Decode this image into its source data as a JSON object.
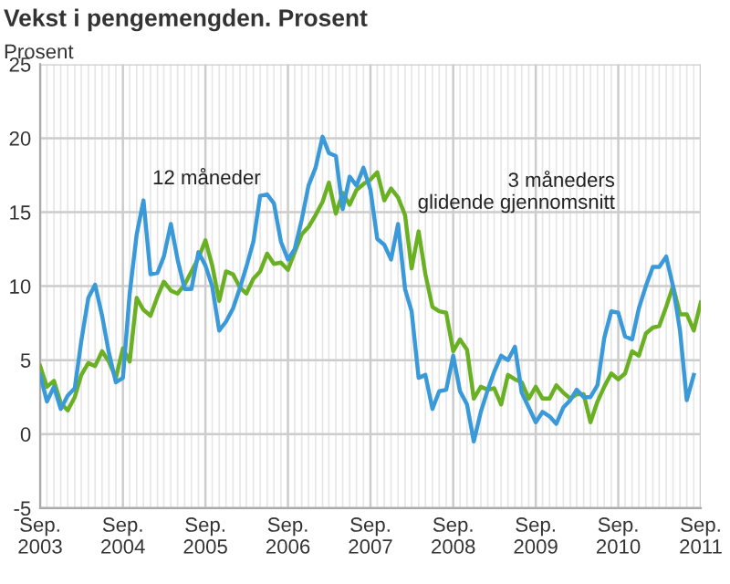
{
  "chart_data": {
    "type": "line",
    "title": "Vekst i pengemengden. Prosent",
    "ylabel": "Prosent",
    "x": [
      "2003-09",
      "2003-10",
      "2003-11",
      "2003-12",
      "2004-01",
      "2004-02",
      "2004-03",
      "2004-04",
      "2004-05",
      "2004-06",
      "2004-07",
      "2004-08",
      "2004-09",
      "2004-10",
      "2004-11",
      "2004-12",
      "2005-01",
      "2005-02",
      "2005-03",
      "2005-04",
      "2005-05",
      "2005-06",
      "2005-07",
      "2005-08",
      "2005-09",
      "2005-10",
      "2005-11",
      "2005-12",
      "2006-01",
      "2006-02",
      "2006-03",
      "2006-04",
      "2006-05",
      "2006-06",
      "2006-07",
      "2006-08",
      "2006-09",
      "2006-10",
      "2006-11",
      "2006-12",
      "2007-01",
      "2007-02",
      "2007-03",
      "2007-04",
      "2007-05",
      "2007-06",
      "2007-07",
      "2007-08",
      "2007-09",
      "2007-10",
      "2007-11",
      "2007-12",
      "2008-01",
      "2008-02",
      "2008-03",
      "2008-04",
      "2008-05",
      "2008-06",
      "2008-07",
      "2008-08",
      "2008-09",
      "2008-10",
      "2008-11",
      "2008-12",
      "2009-01",
      "2009-02",
      "2009-03",
      "2009-04",
      "2009-05",
      "2009-06",
      "2009-07",
      "2009-08",
      "2009-09",
      "2009-10",
      "2009-11",
      "2009-12",
      "2010-01",
      "2010-02",
      "2010-03",
      "2010-04",
      "2010-05",
      "2010-06",
      "2010-07",
      "2010-08",
      "2010-09",
      "2010-10",
      "2010-11",
      "2010-12",
      "2011-01",
      "2011-02",
      "2011-03",
      "2011-04",
      "2011-05",
      "2011-06",
      "2011-07",
      "2011-08",
      "2011-09"
    ],
    "series": [
      {
        "name": "12 måneder",
        "color": "#3a9ad9",
        "values": [
          4.0,
          2.2,
          3.2,
          1.7,
          2.6,
          3.1,
          6.3,
          9.2,
          10.1,
          8.0,
          5.5,
          3.5,
          3.8,
          9.5,
          13.5,
          15.8,
          10.8,
          10.9,
          12.0,
          14.2,
          11.8,
          9.8,
          9.8,
          12.3,
          11.4,
          10.0,
          7.0,
          7.6,
          8.5,
          9.9,
          11.3,
          13.0,
          16.1,
          16.2,
          15.6,
          13.0,
          11.8,
          12.5,
          14.5,
          16.8,
          18.0,
          20.1,
          19.0,
          18.8,
          15.2,
          17.4,
          16.8,
          18.0,
          16.5,
          13.2,
          12.8,
          11.8,
          14.2,
          9.8,
          8.3,
          3.8,
          4.0,
          1.7,
          2.9,
          3.0,
          5.3,
          2.9,
          2.0,
          -0.5,
          1.5,
          3.0,
          4.2,
          5.3,
          5.0,
          5.9,
          2.8,
          1.8,
          0.8,
          1.5,
          1.2,
          0.7,
          1.8,
          2.3,
          3.0,
          2.5,
          2.5,
          3.3,
          6.5,
          8.3,
          8.2,
          6.6,
          6.4,
          8.5,
          10.0,
          11.3,
          11.3,
          12.0,
          10.0,
          7.0,
          2.3,
          4.0,
          null
        ]
      },
      {
        "name": "3 måneders\nglidende gjennomsnitt",
        "color": "#6ab023",
        "values": [
          4.6,
          3.2,
          3.6,
          2.1,
          1.6,
          2.5,
          4.0,
          4.8,
          4.6,
          5.6,
          4.9,
          3.8,
          5.8,
          4.9,
          9.2,
          8.4,
          8.0,
          9.3,
          10.3,
          9.7,
          9.5,
          10.1,
          11.0,
          11.9,
          13.1,
          11.4,
          9.0,
          11.0,
          10.8,
          9.9,
          9.5,
          10.5,
          11.0,
          12.2,
          11.5,
          11.6,
          11.1,
          12.3,
          13.5,
          14.0,
          14.8,
          15.7,
          17.0,
          14.9,
          16.3,
          15.5,
          16.5,
          16.9,
          17.2,
          17.7,
          15.8,
          16.6,
          16.0,
          14.8,
          11.2,
          13.7,
          10.8,
          8.6,
          8.3,
          8.2,
          5.6,
          6.4,
          5.7,
          2.4,
          3.2,
          3.0,
          3.1,
          2.0,
          4.0,
          3.7,
          3.5,
          2.4,
          3.2,
          2.4,
          2.4,
          3.3,
          2.8,
          2.4,
          2.7,
          2.7,
          0.8,
          2.2,
          3.2,
          4.1,
          3.7,
          4.1,
          5.6,
          5.3,
          6.8,
          7.2,
          7.3,
          8.6,
          10.0,
          8.1,
          8.1,
          7.0,
          8.9
        ]
      }
    ],
    "xlim": [
      "2003-09",
      "2011-09"
    ],
    "xticks": [
      {
        "value": "2003-09",
        "label": "Sep.\n2003"
      },
      {
        "value": "2004-09",
        "label": "Sep.\n2004"
      },
      {
        "value": "2005-09",
        "label": "Sep.\n2005"
      },
      {
        "value": "2006-09",
        "label": "Sep.\n2006"
      },
      {
        "value": "2007-09",
        "label": "Sep.\n2007"
      },
      {
        "value": "2008-09",
        "label": "Sep.\n2008"
      },
      {
        "value": "2009-09",
        "label": "Sep.\n2009"
      },
      {
        "value": "2010-09",
        "label": "Sep.\n2010"
      },
      {
        "value": "2011-09",
        "label": "Sep.\n2011"
      }
    ],
    "ylim": [
      -5,
      25
    ],
    "yticks": [
      -5,
      0,
      5,
      10,
      15,
      20,
      25
    ],
    "grid": true,
    "legend": false,
    "marker": "none",
    "line_style": "solid"
  }
}
